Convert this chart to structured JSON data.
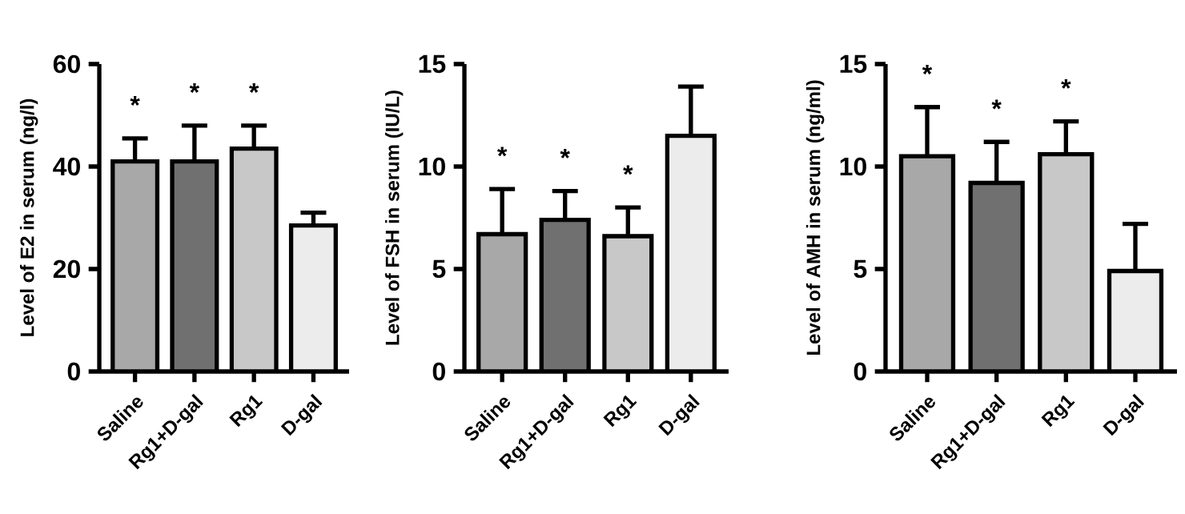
{
  "chart_data": [
    {
      "type": "bar",
      "ylabel": "Level of E2 in serum (ng/l)",
      "categories": [
        "Saline",
        "Rg1+D-gal",
        "Rg1",
        "D-gal"
      ],
      "values": [
        41,
        41,
        43.5,
        28.5
      ],
      "errors": [
        [
          41,
          45.5
        ],
        [
          41,
          48
        ],
        [
          43.5,
          48
        ],
        [
          28.5,
          31
        ]
      ],
      "colors": [
        "#a8a8a8",
        "#707070",
        "#c8c8c8",
        "#ececec"
      ],
      "ylim": [
        0,
        60
      ],
      "yticks": [
        0,
        20,
        40,
        60
      ],
      "annotations": [
        "*",
        "*",
        "*"
      ]
    },
    {
      "type": "bar",
      "ylabel": "Level of FSH in serum (IU/L)",
      "categories": [
        "Saline",
        "Rg1+D-gal",
        "Rg1",
        "D-gal"
      ],
      "values": [
        6.7,
        7.4,
        6.6,
        11.5
      ],
      "errors": [
        [
          6.7,
          8.9
        ],
        [
          7.4,
          8.8
        ],
        [
          6.6,
          8.0
        ],
        [
          11.5,
          13.9
        ]
      ],
      "colors": [
        "#a8a8a8",
        "#707070",
        "#c8c8c8",
        "#ececec"
      ],
      "ylim": [
        0,
        15
      ],
      "yticks": [
        0,
        5,
        10,
        15
      ],
      "annotations": [
        "*",
        "*",
        "*"
      ]
    },
    {
      "type": "bar",
      "ylabel": "Level of AMH in serum (ng/ml)",
      "categories": [
        "Saline",
        "Rg1+D-gal",
        "Rg1",
        "D-gal"
      ],
      "values": [
        10.5,
        9.2,
        10.6,
        4.9
      ],
      "errors": [
        [
          10.5,
          12.9
        ],
        [
          9.2,
          11.2
        ],
        [
          10.6,
          12.2
        ],
        [
          4.9,
          7.2
        ]
      ],
      "colors": [
        "#a8a8a8",
        "#707070",
        "#c8c8c8",
        "#ececec"
      ],
      "ylim": [
        0,
        15
      ],
      "yticks": [
        0,
        5,
        10,
        15
      ],
      "annotations": [
        "*",
        "*",
        "*"
      ]
    }
  ]
}
